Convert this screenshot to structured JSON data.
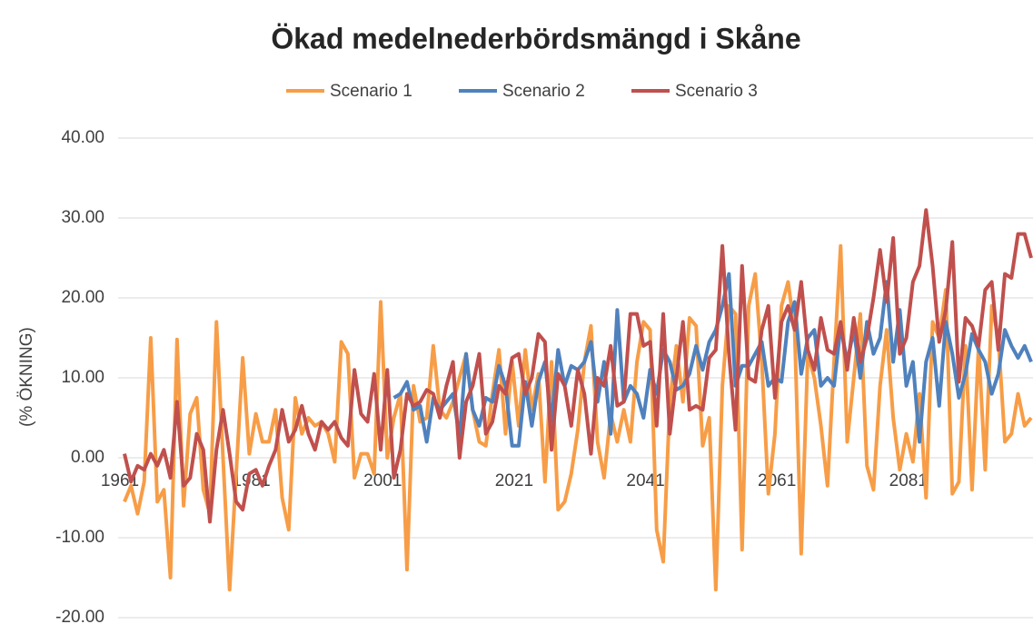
{
  "chart_data": {
    "type": "line",
    "title": "Ökad medelnederbördsmängd i Skåne",
    "y_label": "(% ÖKNING)",
    "legend": "top",
    "grid": true,
    "x": [
      1961,
      1962,
      1963,
      1964,
      1965,
      1966,
      1967,
      1968,
      1969,
      1970,
      1971,
      1972,
      1973,
      1974,
      1975,
      1976,
      1977,
      1978,
      1979,
      1980,
      1981,
      1982,
      1983,
      1984,
      1985,
      1986,
      1987,
      1988,
      1989,
      1990,
      1991,
      1992,
      1993,
      1994,
      1995,
      1996,
      1997,
      1998,
      1999,
      2000,
      2001,
      2002,
      2003,
      2004,
      2005,
      2006,
      2007,
      2008,
      2009,
      2010,
      2011,
      2012,
      2013,
      2014,
      2015,
      2016,
      2017,
      2018,
      2019,
      2020,
      2021,
      2022,
      2023,
      2024,
      2025,
      2026,
      2027,
      2028,
      2029,
      2030,
      2031,
      2032,
      2033,
      2034,
      2035,
      2036,
      2037,
      2038,
      2039,
      2040,
      2041,
      2042,
      2043,
      2044,
      2045,
      2046,
      2047,
      2048,
      2049,
      2050,
      2051,
      2052,
      2053,
      2054,
      2055,
      2056,
      2057,
      2058,
      2059,
      2060,
      2061,
      2062,
      2063,
      2064,
      2065,
      2066,
      2067,
      2068,
      2069,
      2070,
      2071,
      2072,
      2073,
      2074,
      2075,
      2076,
      2077,
      2078,
      2079,
      2080,
      2081,
      2082,
      2083,
      2084,
      2085,
      2086,
      2087,
      2088,
      2089,
      2090,
      2091,
      2092,
      2093,
      2094,
      2095,
      2096,
      2097,
      2098,
      2099
    ],
    "xlim": [
      1961,
      2099
    ],
    "xticks": [
      1961,
      1981,
      2001,
      2021,
      2041,
      2061,
      2081
    ],
    "ylim": [
      -20,
      40
    ],
    "yticks": [
      {
        "value": -20,
        "label": "-20.00"
      },
      {
        "value": -10,
        "label": "-10.00"
      },
      {
        "value": 0,
        "label": "0.00"
      },
      {
        "value": 10,
        "label": "10.00"
      },
      {
        "value": 20,
        "label": "20.00"
      },
      {
        "value": 30,
        "label": "30.00"
      },
      {
        "value": 40,
        "label": "40.00"
      }
    ],
    "series": [
      {
        "name": "Scenario 1",
        "color": "#f79d47",
        "values": [
          -5.5,
          -3.5,
          -7,
          -3,
          15,
          -5.5,
          -4,
          -15,
          14.8,
          -6,
          5.5,
          7.5,
          -4,
          -7,
          17,
          0,
          -16.5,
          -2,
          12.5,
          0.5,
          5.5,
          2,
          2,
          6,
          -5,
          -9,
          7.5,
          3,
          5,
          4,
          4.5,
          3,
          -0.5,
          14.5,
          13,
          -2.5,
          0.5,
          0.5,
          -2,
          19.5,
          0,
          5,
          8,
          -14,
          9,
          4.5,
          5,
          14,
          6,
          5,
          7,
          10,
          13,
          6,
          2,
          1.5,
          8,
          13.5,
          3,
          12,
          4,
          13.5,
          6,
          10.5,
          -3,
          12,
          -6.5,
          -5.5,
          -2,
          3.5,
          12,
          16.5,
          2,
          -2.5,
          5.5,
          2,
          6,
          2,
          12,
          17,
          16,
          -9,
          -13,
          7,
          14,
          7,
          17.5,
          16.5,
          1.5,
          5,
          -16.5,
          9,
          19,
          18,
          -11.5,
          19,
          23,
          12,
          -4.5,
          3,
          19,
          22,
          16,
          -12,
          13,
          10,
          4,
          -3.5,
          12,
          26.5,
          2,
          10,
          18,
          -1,
          -4,
          9,
          16,
          5,
          -1.5,
          3,
          -0.5,
          8,
          -5,
          17,
          15,
          21,
          -4.5,
          -3,
          14,
          -4,
          14,
          -1.5,
          19,
          15,
          2,
          3,
          8,
          4,
          5
        ]
      },
      {
        "name": "Scenario 2",
        "color": "#4f81bd",
        "values": [
          null,
          null,
          null,
          null,
          null,
          null,
          null,
          null,
          null,
          null,
          null,
          null,
          null,
          null,
          null,
          null,
          null,
          null,
          null,
          null,
          null,
          null,
          null,
          null,
          null,
          null,
          null,
          null,
          null,
          null,
          null,
          null,
          null,
          null,
          null,
          null,
          null,
          null,
          null,
          null,
          null,
          7.5,
          8,
          9.5,
          6,
          6.5,
          2,
          7.5,
          6,
          7,
          8,
          2.5,
          13,
          6,
          4,
          7.5,
          7,
          11.5,
          9,
          1.5,
          1.5,
          9.5,
          4,
          9.5,
          12,
          4.5,
          13.5,
          9,
          11.5,
          11,
          12,
          14.5,
          7,
          12,
          3,
          18.5,
          7,
          9,
          8,
          5,
          11,
          8,
          13.5,
          12,
          8.5,
          9,
          10.5,
          14,
          11,
          14.5,
          16,
          19,
          23,
          9,
          11.5,
          11.5,
          13,
          14.5,
          9,
          10,
          9.5,
          17,
          19.5,
          10.5,
          15,
          16,
          9,
          10,
          9,
          16.5,
          12,
          16,
          10,
          17,
          13,
          15,
          22,
          12,
          18.5,
          9,
          12,
          2,
          12,
          15,
          6.5,
          17,
          13,
          7.5,
          10.5,
          15.5,
          13.5,
          12,
          8,
          10.5,
          16,
          14,
          12.5,
          14,
          12
        ]
      },
      {
        "name": "Scenario 3",
        "color": "#c0504d",
        "values": [
          0.5,
          -3,
          -1,
          -1.5,
          0.5,
          -1,
          1,
          -2.5,
          7,
          -3.5,
          -2.5,
          3,
          1,
          -8,
          1,
          6,
          0.5,
          -5.5,
          -6.5,
          -2,
          -1.5,
          -3.5,
          -1,
          1,
          6,
          2,
          3.5,
          6.5,
          3,
          1,
          4.5,
          3.5,
          4.5,
          2.5,
          1.5,
          11,
          5.5,
          4.5,
          10.5,
          1,
          11,
          -2.5,
          1,
          8,
          6.5,
          7,
          8.5,
          8,
          5,
          9,
          12,
          0,
          7,
          9,
          13,
          3,
          4.5,
          9,
          8,
          12.5,
          13,
          8,
          10,
          15.5,
          14.5,
          1,
          10.5,
          9,
          4,
          11,
          8,
          0.5,
          10,
          9,
          14,
          6.5,
          7,
          18,
          18,
          14,
          14.5,
          4,
          18,
          3,
          10,
          17,
          6,
          6.5,
          6,
          12.5,
          13.5,
          26.5,
          13,
          3.5,
          24,
          10,
          9.5,
          16,
          19,
          7.5,
          17,
          19,
          16,
          22,
          13.5,
          11,
          17.5,
          13.5,
          13,
          17,
          11,
          17.5,
          12,
          15,
          20,
          26,
          19.5,
          27.5,
          13,
          15,
          22,
          24,
          31,
          24,
          14.5,
          18.5,
          27,
          9.5,
          17.5,
          16.5,
          14,
          21,
          22,
          13.5,
          23,
          22.5,
          28,
          28,
          25
        ]
      }
    ]
  }
}
